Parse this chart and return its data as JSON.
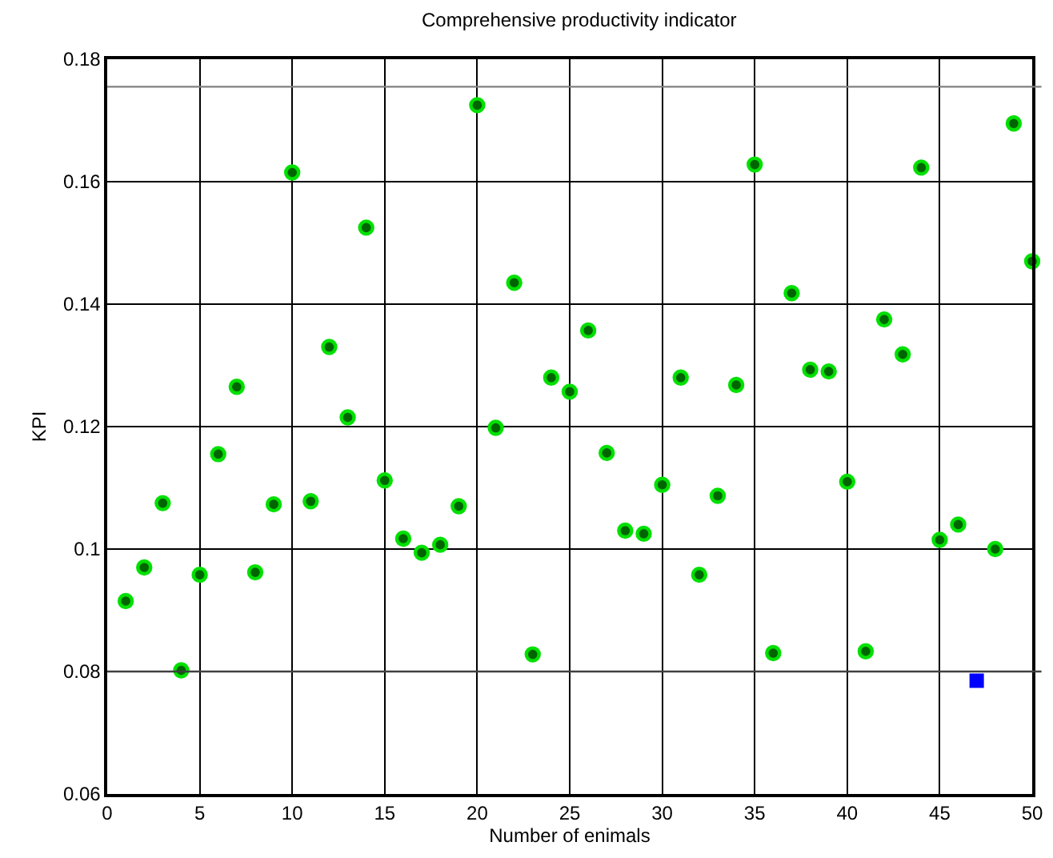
{
  "chart_data": {
    "type": "scatter",
    "title": "Comprehensive productivity indicator",
    "xlabel": "Number of enimals",
    "ylabel": "KPI",
    "xlim": [
      0,
      50
    ],
    "xticks": [
      0,
      5,
      10,
      15,
      20,
      25,
      30,
      35,
      40,
      45,
      50
    ],
    "ylim": [
      0.06,
      0.18
    ],
    "yticks": [
      0.06,
      0.08,
      0.1,
      0.12,
      0.14,
      0.16,
      0.18
    ],
    "grid": true,
    "series": [
      {
        "color": "#00e000",
        "marker": "circle",
        "x": [
          1,
          2,
          3,
          4,
          5,
          6,
          7,
          8,
          9,
          10,
          11,
          12,
          13,
          14,
          15,
          16,
          17,
          18,
          19,
          20,
          21,
          22,
          23,
          24,
          25,
          26,
          27,
          28,
          29,
          30,
          31,
          32,
          33,
          34,
          35,
          36,
          37,
          38,
          39,
          40,
          41,
          42,
          43,
          44,
          45,
          46,
          48,
          49,
          50
        ],
        "values": [
          0.0915,
          0.097,
          0.1075,
          0.0802,
          0.0958,
          0.1155,
          0.1265,
          0.0962,
          0.1073,
          0.1615,
          0.1078,
          0.133,
          0.1215,
          0.1525,
          0.1112,
          0.1017,
          0.0994,
          0.1007,
          0.107,
          0.1725,
          0.1198,
          0.1435,
          0.0828,
          0.128,
          0.1257,
          0.1357,
          0.1157,
          0.103,
          0.1025,
          0.1105,
          0.128,
          0.0958,
          0.1087,
          0.1268,
          0.1628,
          0.083,
          0.1418,
          0.1293,
          0.129,
          0.111,
          0.0833,
          0.1375,
          0.1318,
          0.1623,
          0.1015,
          0.104,
          0.1,
          0.1695,
          0.147
        ]
      },
      {
        "color": "#0000ff",
        "marker": "square",
        "x": [
          47
        ],
        "values": [
          0.0785
        ]
      }
    ],
    "ref_lines": [
      {
        "axis": "y",
        "value": 0.1755,
        "color": "#808080"
      },
      {
        "axis": "y",
        "value": 0.08,
        "color": "#404040"
      }
    ]
  }
}
